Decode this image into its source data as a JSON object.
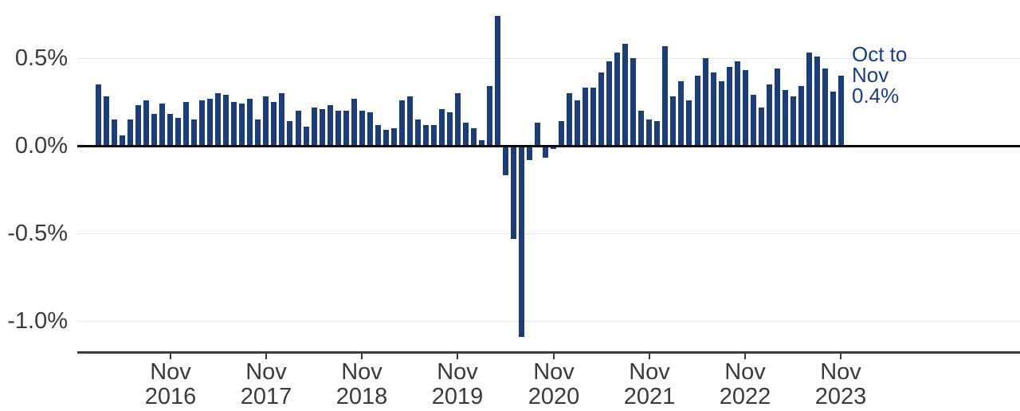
{
  "colors": {
    "bar": "#1c3d7c",
    "annotation_text": "#1a3e8f",
    "axis_text": "#3b3b3b",
    "gridline": "#e8e8e8",
    "zero_line": "#0b0b0b",
    "axis_line": "#3b3b3b",
    "background": "#ffffff"
  },
  "y_axis": {
    "ticks": [
      {
        "label": "0.5%",
        "value": 0.5
      },
      {
        "label": "0.0%",
        "value": 0.0
      },
      {
        "label": "-0.5%",
        "value": -0.5
      },
      {
        "label": "-1.0%",
        "value": -1.0
      }
    ]
  },
  "x_axis": {
    "ticks": [
      {
        "month": "Nov",
        "year": "2016",
        "category": "2016-11"
      },
      {
        "month": "Nov",
        "year": "2017",
        "category": "2017-11"
      },
      {
        "month": "Nov",
        "year": "2018",
        "category": "2018-11"
      },
      {
        "month": "Nov",
        "year": "2019",
        "category": "2019-11"
      },
      {
        "month": "Nov",
        "year": "2020",
        "category": "2020-11"
      },
      {
        "month": "Nov",
        "year": "2021",
        "category": "2021-11"
      },
      {
        "month": "Nov",
        "year": "2022",
        "category": "2022-11"
      },
      {
        "month": "Nov",
        "year": "2023",
        "category": "2023-11"
      }
    ]
  },
  "annotation": {
    "lines": [
      "Oct to",
      "Nov",
      "0.4%"
    ]
  },
  "chart_data": {
    "type": "bar",
    "title": "",
    "ylabel": "",
    "xlabel": "",
    "unit": "%",
    "ylim": [
      -1.15,
      0.8
    ],
    "y_gridlines": [
      0.5,
      0.0,
      -0.5,
      -1.0
    ],
    "legend": null,
    "annotation": {
      "text": "Oct to Nov 0.4%",
      "anchor": "2023-11",
      "value": 0.4
    },
    "categories": [
      "2016-02",
      "2016-03",
      "2016-04",
      "2016-05",
      "2016-06",
      "2016-07",
      "2016-08",
      "2016-09",
      "2016-10",
      "2016-11",
      "2016-12",
      "2017-01",
      "2017-02",
      "2017-03",
      "2017-04",
      "2017-05",
      "2017-06",
      "2017-07",
      "2017-08",
      "2017-09",
      "2017-10",
      "2017-11",
      "2017-12",
      "2018-01",
      "2018-02",
      "2018-03",
      "2018-04",
      "2018-05",
      "2018-06",
      "2018-07",
      "2018-08",
      "2018-09",
      "2018-10",
      "2018-11",
      "2018-12",
      "2019-01",
      "2019-02",
      "2019-03",
      "2019-04",
      "2019-05",
      "2019-06",
      "2019-07",
      "2019-08",
      "2019-09",
      "2019-10",
      "2019-11",
      "2019-12",
      "2020-01",
      "2020-02",
      "2020-03",
      "2020-04",
      "2020-05",
      "2020-06",
      "2020-07",
      "2020-08",
      "2020-09",
      "2020-10",
      "2020-11",
      "2020-12",
      "2021-01",
      "2021-02",
      "2021-03",
      "2021-04",
      "2021-05",
      "2021-06",
      "2021-07",
      "2021-08",
      "2021-09",
      "2021-10",
      "2021-11",
      "2021-12",
      "2022-01",
      "2022-02",
      "2022-03",
      "2022-04",
      "2022-05",
      "2022-06",
      "2022-07",
      "2022-08",
      "2022-09",
      "2022-10",
      "2022-11",
      "2022-12",
      "2023-01",
      "2023-02",
      "2023-03",
      "2023-04",
      "2023-05",
      "2023-06",
      "2023-07",
      "2023-08",
      "2023-09",
      "2023-10",
      "2023-11"
    ],
    "values": [
      0.35,
      0.28,
      0.15,
      0.06,
      0.15,
      0.23,
      0.26,
      0.18,
      0.24,
      0.18,
      0.16,
      0.25,
      0.15,
      0.26,
      0.27,
      0.3,
      0.29,
      0.25,
      0.24,
      0.27,
      0.15,
      0.28,
      0.25,
      0.3,
      0.14,
      0.2,
      0.11,
      0.22,
      0.21,
      0.23,
      0.2,
      0.2,
      0.27,
      0.2,
      0.19,
      0.12,
      0.09,
      0.1,
      0.26,
      0.28,
      0.15,
      0.12,
      0.12,
      0.21,
      0.19,
      0.3,
      0.13,
      0.1,
      0.03,
      0.34,
      0.74,
      -0.17,
      -0.53,
      -1.09,
      -0.08,
      0.13,
      -0.07,
      -0.02,
      0.14,
      0.3,
      0.26,
      0.33,
      0.33,
      0.42,
      0.48,
      0.53,
      0.58,
      0.5,
      0.2,
      0.15,
      0.14,
      0.57,
      0.28,
      0.37,
      0.26,
      0.4,
      0.5,
      0.42,
      0.37,
      0.45,
      0.48,
      0.43,
      0.29,
      0.22,
      0.35,
      0.44,
      0.32,
      0.28,
      0.34,
      0.53,
      0.51,
      0.44,
      0.31,
      0.4
    ]
  }
}
